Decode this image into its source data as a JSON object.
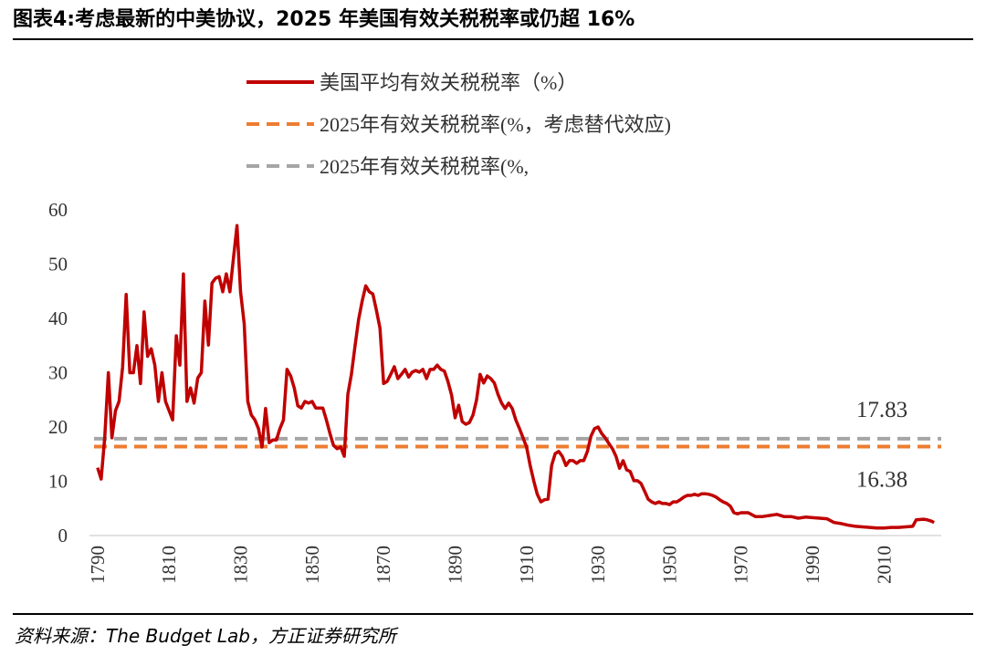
{
  "chart_data": {
    "type": "line",
    "title": "图表4:考虑最新的中美协议，2025 年美国有效关税税率或仍超 16%",
    "source": "资料来源：The Budget Lab，方正证券研究所",
    "x": [
      1790,
      1791,
      1792,
      1793,
      1794,
      1795,
      1796,
      1797,
      1798,
      1799,
      1800,
      1801,
      1802,
      1803,
      1804,
      1805,
      1806,
      1807,
      1808,
      1809,
      1810,
      1811,
      1812,
      1813,
      1814,
      1815,
      1816,
      1817,
      1818,
      1819,
      1820,
      1821,
      1822,
      1823,
      1824,
      1825,
      1826,
      1827,
      1828,
      1829,
      1830,
      1831,
      1832,
      1833,
      1834,
      1835,
      1836,
      1837,
      1838,
      1839,
      1840,
      1841,
      1842,
      1843,
      1844,
      1845,
      1846,
      1847,
      1848,
      1849,
      1850,
      1851,
      1852,
      1853,
      1854,
      1855,
      1856,
      1857,
      1858,
      1859,
      1860,
      1861,
      1862,
      1863,
      1864,
      1865,
      1866,
      1867,
      1868,
      1869,
      1870,
      1871,
      1872,
      1873,
      1874,
      1875,
      1876,
      1877,
      1878,
      1879,
      1880,
      1881,
      1882,
      1883,
      1884,
      1885,
      1886,
      1887,
      1888,
      1889,
      1890,
      1891,
      1892,
      1893,
      1894,
      1895,
      1896,
      1897,
      1898,
      1899,
      1900,
      1901,
      1902,
      1903,
      1904,
      1905,
      1906,
      1907,
      1908,
      1909,
      1910,
      1911,
      1912,
      1913,
      1914,
      1915,
      1916,
      1917,
      1918,
      1919,
      1920,
      1921,
      1922,
      1923,
      1924,
      1925,
      1926,
      1927,
      1928,
      1929,
      1930,
      1931,
      1932,
      1933,
      1934,
      1935,
      1936,
      1937,
      1938,
      1939,
      1940,
      1941,
      1942,
      1943,
      1944,
      1945,
      1946,
      1947,
      1948,
      1949,
      1950,
      1951,
      1952,
      1953,
      1954,
      1955,
      1956,
      1957,
      1958,
      1959,
      1960,
      1961,
      1962,
      1963,
      1964,
      1965,
      1966,
      1967,
      1968,
      1969,
      1970,
      1972,
      1974,
      1976,
      1978,
      1980,
      1982,
      1984,
      1986,
      1988,
      1990,
      1992,
      1994,
      1996,
      1998,
      2000,
      2002,
      2004,
      2006,
      2008,
      2010,
      2012,
      2014,
      2016,
      2018,
      2019,
      2021,
      2022,
      2023,
      2024
    ],
    "series": [
      {
        "name": "美国平均有效关税税率（%）",
        "color": "#c00000",
        "values": [
          12.5,
          10.4,
          18,
          30,
          18,
          23,
          24.7,
          31,
          44.4,
          30,
          30,
          35,
          28,
          41.2,
          33,
          34.4,
          31.4,
          24.7,
          30,
          24.7,
          23,
          21.3,
          36.8,
          31.4,
          48.2,
          24.7,
          27.2,
          24.4,
          29,
          30,
          43.2,
          35.1,
          46.5,
          47.4,
          47.7,
          44.9,
          48.2,
          44.9,
          51.1,
          57.1,
          44.9,
          39,
          24.7,
          22.2,
          21.3,
          19.7,
          16.3,
          23.4,
          17.1,
          17.6,
          17.6,
          19.7,
          21.3,
          30.6,
          29.4,
          27.2,
          23.9,
          23.5,
          24.7,
          24.4,
          24.7,
          23.5,
          23.5,
          23.5,
          21.3,
          18.8,
          16.6,
          16,
          16.3,
          14.6,
          26,
          29.7,
          34.8,
          39.8,
          43.2,
          46,
          44.9,
          44.5,
          41.5,
          38.2,
          28,
          28.4,
          29.7,
          31.1,
          28.9,
          29.7,
          30.6,
          29.2,
          30.1,
          30.4,
          30.1,
          30.6,
          28.9,
          30.6,
          30.6,
          31.4,
          30.6,
          30.3,
          28.4,
          25.9,
          21.7,
          24,
          21,
          20.5,
          20.8,
          22.2,
          25,
          29.7,
          28.1,
          29.4,
          28.9,
          28.1,
          26,
          24.4,
          23.4,
          24.4,
          23.4,
          21.3,
          19.7,
          18,
          16.3,
          12.9,
          10.1,
          7.6,
          6.2,
          6.6,
          6.7,
          12.9,
          15.1,
          15.5,
          14.6,
          12.9,
          13.8,
          13.8,
          13.3,
          13.8,
          13.8,
          15.5,
          18.3,
          19.7,
          20,
          18.8,
          18,
          17,
          16,
          14.6,
          12.4,
          13.8,
          12.1,
          11.8,
          10.1,
          10.1,
          9.6,
          8.2,
          6.7,
          6.2,
          5.9,
          6.2,
          5.9,
          5.9,
          5.7,
          6.2,
          6.2,
          6.6,
          7.1,
          7.4,
          7.4,
          7.6,
          7.4,
          7.7,
          7.7,
          7.6,
          7.4,
          7.1,
          6.6,
          6.2,
          5.9,
          5.4,
          4.2,
          4,
          4.2,
          4.2,
          3.5,
          3.5,
          3.7,
          3.9,
          3.5,
          3.5,
          3.2,
          3.4,
          3.3,
          3.2,
          3.1,
          2.4,
          2.2,
          1.9,
          1.7,
          1.6,
          1.5,
          1.4,
          1.4,
          1.5,
          1.5,
          1.6,
          1.7,
          2.9,
          3,
          2.9,
          2.7,
          2.4
        ]
      }
    ],
    "reference_lines": [
      {
        "name": "2025年有效关税税率(%，考虑替代效应)",
        "color": "#ed7d31",
        "value": 16.38
      },
      {
        "name": "2025年有效关税税率(%,",
        "color": "#a5a5a5",
        "value": 17.83
      }
    ],
    "xlim": [
      1789,
      2026
    ],
    "xticks": [
      1790,
      1810,
      1830,
      1850,
      1870,
      1890,
      1910,
      1930,
      1950,
      1970,
      1990,
      2010
    ],
    "ylim": [
      0,
      60
    ],
    "yticks": [
      0,
      10,
      20,
      30,
      40,
      50,
      60
    ],
    "grid": false
  }
}
